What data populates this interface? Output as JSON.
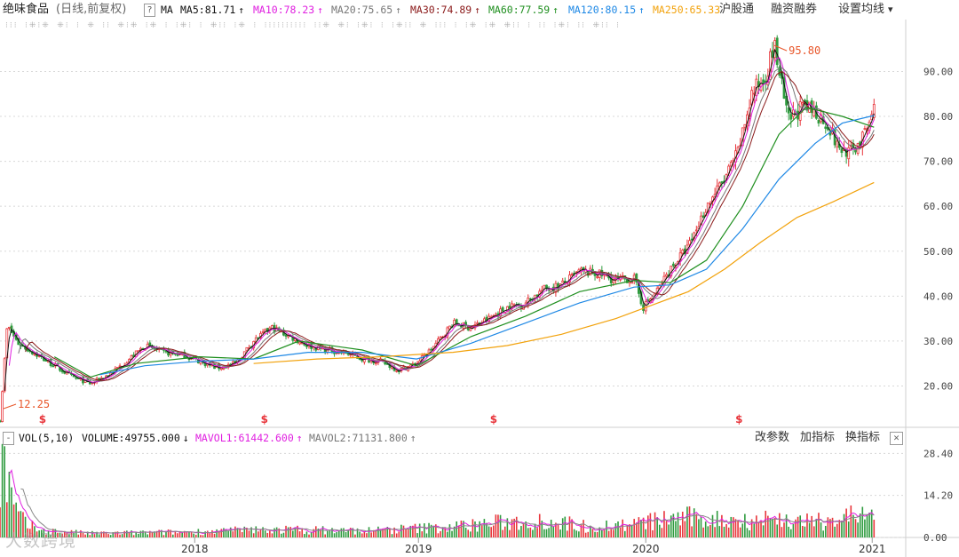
{
  "header": {
    "title": "绝味食品",
    "params": "(日线,前复权)",
    "help_icon": "?",
    "ma_label": "MA",
    "ma_items": [
      {
        "label": "MA5:81.71",
        "arrow": "↑",
        "color": "#111111"
      },
      {
        "label": "MA10:78.23",
        "arrow": "↑",
        "color": "#e020e0"
      },
      {
        "label": "MA20:75.65",
        "arrow": "↑",
        "color": "#777777"
      },
      {
        "label": "MA30:74.89",
        "arrow": "↑",
        "color": "#8b1a1a"
      },
      {
        "label": "MA60:77.59",
        "arrow": "↑",
        "color": "#1f8f1f"
      },
      {
        "label": "MA120:80.15",
        "arrow": "↑",
        "color": "#1e88e5"
      },
      {
        "label": "MA250:65.33",
        "arrow": "",
        "color": "#f2a20c"
      }
    ],
    "links": [
      "沪股通",
      "融资融券",
      "设置均线"
    ],
    "dropdown_icon": "▾"
  },
  "event_marks": "⁝⁝⁝ ⁝⁜⁝⁜ ⁜⁝ ⁝  ⁜ ⁝⁝  ⁜⁝⁜ ⁝⁜ ⁝  ⁝⁜⁝ ⁝  ⁜⁝⁝ ⁝⁜  ⁝ ⁝⁝⁝⁝⁝⁝⁝⁝⁝⁝ ⁝⁝⁜ ⁜⁝ ⁝⁜⁝ ⁝  ⁝⁜⁝⁝ ⁜ ⁝⁝⁝ ⁝  ⁝⁜ ⁝⁜  ⁜⁝⁝ ⁝ ⁝⁝ ⁝⁜⁝  ⁝⁝ ⁜⁝⁝ ⁝",
  "volume_bar": {
    "vol_label": "VOL(5,10)",
    "volume": "VOLUME:49755.000",
    "volume_arrow": "↓",
    "mavol1": "MAVOL1:61442.600",
    "mavol1_arrow": "↑",
    "mavol2": "MAVOL2:71131.800",
    "mavol2_arrow": "↑",
    "buttons": [
      "改参数",
      "加指标",
      "换指标"
    ],
    "close_icon": "✕"
  },
  "watermark": "大数跨境",
  "chart_data": {
    "type": "candlestick",
    "price_axis": {
      "ticks": [
        "90.00",
        "80.00",
        "70.00",
        "60.00",
        "50.00",
        "40.00",
        "30.00",
        "20.00"
      ],
      "values": [
        90,
        80,
        70,
        60,
        50,
        40,
        30,
        20
      ],
      "ylim": [
        11,
        98
      ]
    },
    "volume_axis": {
      "ticks": [
        "28.40",
        "14.20",
        "0.00"
      ],
      "values": [
        28.4,
        14.2,
        0
      ],
      "ylim": [
        0,
        30
      ]
    },
    "x_ticks": [
      "2018",
      "2019",
      "2020",
      "2021"
    ],
    "x_tick_pos": [
      0.215,
      0.462,
      0.713,
      0.963
    ],
    "annotations": {
      "high": "95.80",
      "low": "12.25",
      "high_value": 95.8,
      "low_value": 12.25
    },
    "dividend_marks": [
      "$",
      "$",
      "$",
      "$"
    ],
    "dividend_pos": [
      0.047,
      0.292,
      0.545,
      0.816
    ],
    "price_path": [
      [
        0.0,
        12.25
      ],
      [
        0.008,
        33.5
      ],
      [
        0.02,
        29.5
      ],
      [
        0.04,
        27.0
      ],
      [
        0.06,
        24.5
      ],
      [
        0.08,
        22.0
      ],
      [
        0.1,
        20.5
      ],
      [
        0.12,
        22.5
      ],
      [
        0.14,
        25.5
      ],
      [
        0.16,
        29.0
      ],
      [
        0.18,
        27.5
      ],
      [
        0.2,
        27.0
      ],
      [
        0.22,
        25.5
      ],
      [
        0.24,
        24.0
      ],
      [
        0.26,
        25.0
      ],
      [
        0.28,
        30.0
      ],
      [
        0.3,
        33.0
      ],
      [
        0.32,
        31.0
      ],
      [
        0.34,
        29.0
      ],
      [
        0.36,
        28.0
      ],
      [
        0.38,
        27.5
      ],
      [
        0.4,
        26.0
      ],
      [
        0.42,
        25.5
      ],
      [
        0.44,
        23.5
      ],
      [
        0.46,
        25.0
      ],
      [
        0.48,
        29.0
      ],
      [
        0.5,
        34.0
      ],
      [
        0.52,
        33.0
      ],
      [
        0.54,
        35.0
      ],
      [
        0.56,
        37.5
      ],
      [
        0.58,
        38.5
      ],
      [
        0.6,
        41.5
      ],
      [
        0.62,
        42.5
      ],
      [
        0.64,
        45.5
      ],
      [
        0.66,
        45.0
      ],
      [
        0.68,
        43.5
      ],
      [
        0.7,
        44.0
      ],
      [
        0.71,
        37.5
      ],
      [
        0.725,
        41.0
      ],
      [
        0.74,
        46.0
      ],
      [
        0.76,
        51.0
      ],
      [
        0.78,
        60.0
      ],
      [
        0.8,
        66.0
      ],
      [
        0.815,
        72.0
      ],
      [
        0.83,
        85.0
      ],
      [
        0.845,
        89.0
      ],
      [
        0.855,
        95.8
      ],
      [
        0.87,
        79.0
      ],
      [
        0.885,
        82.0
      ],
      [
        0.9,
        81.0
      ],
      [
        0.915,
        78.0
      ],
      [
        0.925,
        73.0
      ],
      [
        0.94,
        72.0
      ],
      [
        0.955,
        76.0
      ],
      [
        0.965,
        81.7
      ]
    ],
    "series": [
      {
        "name": "MA5",
        "color": "#111111"
      },
      {
        "name": "MA10",
        "color": "#e020e0"
      },
      {
        "name": "MA20",
        "color": "#777777"
      },
      {
        "name": "MA30",
        "color": "#8b1a1a"
      },
      {
        "name": "MA60",
        "color": "#1f8f1f"
      },
      {
        "name": "MA120",
        "color": "#1e88e5"
      },
      {
        "name": "MA250",
        "color": "#f2a20c"
      }
    ],
    "ma250_path": [
      [
        0.28,
        25.0
      ],
      [
        0.35,
        26.0
      ],
      [
        0.42,
        26.5
      ],
      [
        0.5,
        27.5
      ],
      [
        0.56,
        29.0
      ],
      [
        0.62,
        31.5
      ],
      [
        0.68,
        35.0
      ],
      [
        0.72,
        38.0
      ],
      [
        0.76,
        41.0
      ],
      [
        0.8,
        46.0
      ],
      [
        0.84,
        52.0
      ],
      [
        0.88,
        57.5
      ],
      [
        0.92,
        61.0
      ],
      [
        0.965,
        65.3
      ]
    ],
    "ma120_path": [
      [
        0.11,
        22.5
      ],
      [
        0.16,
        24.5
      ],
      [
        0.22,
        25.5
      ],
      [
        0.28,
        26.0
      ],
      [
        0.34,
        27.5
      ],
      [
        0.4,
        27.5
      ],
      [
        0.46,
        26.0
      ],
      [
        0.52,
        29.5
      ],
      [
        0.58,
        34.0
      ],
      [
        0.64,
        38.5
      ],
      [
        0.7,
        42.0
      ],
      [
        0.74,
        42.5
      ],
      [
        0.78,
        46.0
      ],
      [
        0.82,
        55.0
      ],
      [
        0.86,
        66.0
      ],
      [
        0.9,
        74.0
      ],
      [
        0.93,
        78.5
      ],
      [
        0.965,
        80.2
      ]
    ],
    "ma60_path": [
      [
        0.06,
        26.5
      ],
      [
        0.1,
        22.0
      ],
      [
        0.15,
        25.0
      ],
      [
        0.22,
        26.5
      ],
      [
        0.28,
        26.0
      ],
      [
        0.33,
        30.0
      ],
      [
        0.4,
        28.0
      ],
      [
        0.46,
        24.5
      ],
      [
        0.52,
        31.0
      ],
      [
        0.58,
        35.5
      ],
      [
        0.64,
        41.0
      ],
      [
        0.7,
        43.5
      ],
      [
        0.74,
        43.0
      ],
      [
        0.78,
        48.0
      ],
      [
        0.82,
        60.0
      ],
      [
        0.86,
        76.0
      ],
      [
        0.89,
        82.0
      ],
      [
        0.93,
        80.0
      ],
      [
        0.965,
        77.6
      ]
    ],
    "volume_peaks": [
      [
        0.005,
        28.0
      ],
      [
        0.01,
        18.0
      ],
      [
        0.015,
        12.0
      ],
      [
        0.02,
        8.0
      ],
      [
        0.03,
        4.5
      ],
      [
        0.05,
        2.5
      ],
      [
        0.1,
        1.5
      ],
      [
        0.2,
        2.0
      ],
      [
        0.3,
        3.0
      ],
      [
        0.4,
        2.5
      ],
      [
        0.5,
        4.0
      ],
      [
        0.55,
        5.5
      ],
      [
        0.6,
        6.5
      ],
      [
        0.65,
        4.0
      ],
      [
        0.7,
        5.0
      ],
      [
        0.75,
        7.5
      ],
      [
        0.8,
        6.5
      ],
      [
        0.85,
        7.0
      ],
      [
        0.9,
        5.5
      ],
      [
        0.95,
        9.0
      ],
      [
        0.965,
        6.0
      ]
    ]
  }
}
